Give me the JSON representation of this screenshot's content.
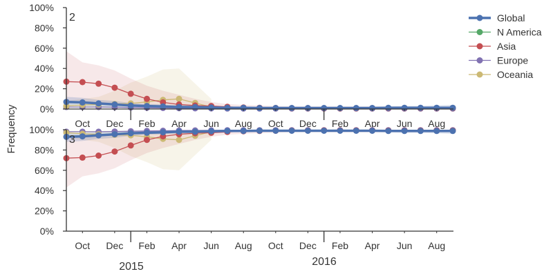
{
  "chart_data": {
    "type": "line",
    "ylabel": "Frequency",
    "x": [
      "2015-09",
      "2015-10",
      "2015-11",
      "2015-12",
      "2016-01",
      "2016-02",
      "2016-03",
      "2016-04",
      "2016-05",
      "2016-06",
      "2016-07",
      "2016-08",
      "2016-09",
      "2016-10",
      "2016-11",
      "2016-12",
      "2017-01",
      "2017-02",
      "2017-03",
      "2017-04",
      "2017-05",
      "2017-06",
      "2017-07",
      "2017-08",
      "2017-09"
    ],
    "xtick_labels": [
      "Oct",
      "Dec",
      "Feb",
      "Apr",
      "Jun",
      "Aug",
      "Oct",
      "Dec",
      "Feb",
      "Apr",
      "Jun",
      "Aug"
    ],
    "year_labels": [
      "2015",
      "2016"
    ],
    "ylim": [
      0,
      1
    ],
    "ytick_labels": [
      "0%",
      "20%",
      "40%",
      "60%",
      "80%",
      "100%"
    ],
    "legend": {
      "placement": "upper-right-outside",
      "entries": [
        "Global",
        "N America",
        "Asia",
        "Europe",
        "Oceania"
      ]
    },
    "colors": {
      "Global": "#4c72b0",
      "N America": "#55a868",
      "Asia": "#c44e52",
      "Europe": "#8172b2",
      "Oceania": "#ccb974"
    },
    "panels": [
      {
        "label": "2",
        "series": [
          {
            "name": "Global",
            "values": [
              0.07,
              0.065,
              0.055,
              0.045,
              0.035,
              0.03,
              0.025,
              0.02,
              0.02,
              0.015,
              0.012,
              0.012,
              0.01,
              0.01,
              0.01,
              0.01,
              0.01,
              0.01,
              0.01,
              0.01,
              0.012,
              0.012,
              0.012,
              0.012,
              0.012
            ],
            "lower": [
              0.03,
              0.03,
              0.025,
              0.02,
              0.015,
              0.012,
              0.01,
              0.008,
              0.005,
              0.005,
              0.004,
              0.004,
              0.003,
              0.003,
              0.003,
              0.003,
              0.003,
              0.003,
              0.003,
              0.003,
              0.003,
              0.003,
              0.003,
              0.003,
              0.003
            ],
            "upper": [
              0.12,
              0.11,
              0.09,
              0.08,
              0.06,
              0.05,
              0.045,
              0.04,
              0.035,
              0.03,
              0.025,
              0.022,
              0.02,
              0.02,
              0.02,
              0.02,
              0.02,
              0.02,
              0.02,
              0.02,
              0.025,
              0.03,
              0.03,
              0.035,
              0.04
            ]
          },
          {
            "name": "N America",
            "values": [
              null,
              null,
              null,
              null,
              null,
              null,
              null,
              null,
              null,
              null,
              null,
              null,
              null,
              null,
              null,
              null,
              null,
              null,
              null,
              null,
              null,
              null,
              null,
              null,
              null
            ]
          },
          {
            "name": "Asia",
            "values": [
              0.27,
              0.265,
              0.25,
              0.21,
              0.15,
              0.1,
              0.065,
              0.045,
              0.035,
              0.03,
              0.022,
              0.015,
              0.012,
              0.01,
              0.008,
              0.008,
              0.007,
              0.007,
              0.007,
              0.008,
              0.008,
              0.008,
              0.008,
              0.008,
              0.008
            ],
            "lower": [
              0.06,
              0.06,
              0.05,
              0.04,
              0.03,
              0.02,
              0.015,
              0.01,
              0.008,
              0.006,
              0.005,
              0.004,
              0.003,
              0.003,
              0.003,
              0.003,
              0.003,
              0.003,
              0.003,
              0.003,
              0.003,
              0.003,
              0.003,
              0.003,
              0.003
            ],
            "upper": [
              0.57,
              0.46,
              0.43,
              0.38,
              0.3,
              0.23,
              0.18,
              0.14,
              0.1,
              0.07,
              0.05,
              0.04,
              0.035,
              0.03,
              0.025,
              0.025,
              0.025,
              0.025,
              0.025,
              0.025,
              0.025,
              0.025,
              0.025,
              0.025,
              0.025
            ]
          },
          {
            "name": "Europe",
            "values": [
              0.02,
              0.02,
              0.02,
              0.018,
              0.015,
              0.012,
              0.01,
              0.008,
              0.007,
              0.006,
              0.005,
              0.005,
              0.005,
              0.005,
              0.005,
              0.005,
              0.005,
              0.005,
              0.005,
              0.005,
              0.005,
              0.005,
              0.005,
              0.005,
              0.005
            ]
          },
          {
            "name": "Oceania",
            "values": [
              0.03,
              0.04,
              0.045,
              0.05,
              0.055,
              0.07,
              0.09,
              0.1,
              0.06,
              0.02,
              null,
              null,
              null,
              null,
              null,
              null,
              null,
              null,
              null,
              null,
              null,
              null,
              null,
              null,
              null
            ],
            "lower": [
              0.01,
              0.01,
              0.01,
              0.01,
              0.01,
              0.01,
              0.01,
              0.01,
              0.01,
              0.005,
              null,
              null,
              null,
              null,
              null,
              null,
              null,
              null,
              null,
              null,
              null,
              null,
              null,
              null,
              null
            ],
            "upper": [
              0.08,
              0.1,
              0.12,
              0.18,
              0.26,
              0.32,
              0.39,
              0.4,
              0.25,
              0.1,
              null,
              null,
              null,
              null,
              null,
              null,
              null,
              null,
              null,
              null,
              null,
              null,
              null,
              null,
              null
            ]
          }
        ]
      },
      {
        "label": "3",
        "series": [
          {
            "name": "Global",
            "values": [
              0.93,
              0.935,
              0.945,
              0.955,
              0.965,
              0.97,
              0.975,
              0.98,
              0.98,
              0.985,
              0.988,
              0.988,
              0.99,
              0.99,
              0.99,
              0.99,
              0.99,
              0.99,
              0.99,
              0.99,
              0.988,
              0.988,
              0.988,
              0.988,
              0.988
            ],
            "lower": [
              0.88,
              0.89,
              0.91,
              0.92,
              0.94,
              0.95,
              0.955,
              0.96,
              0.965,
              0.97,
              0.975,
              0.978,
              0.98,
              0.98,
              0.98,
              0.98,
              0.98,
              0.98,
              0.98,
              0.98,
              0.975,
              0.97,
              0.97,
              0.965,
              0.96
            ],
            "upper": [
              0.97,
              0.97,
              0.975,
              0.98,
              0.985,
              0.988,
              0.99,
              0.992,
              0.995,
              0.995,
              0.996,
              0.996,
              0.997,
              0.997,
              0.997,
              0.997,
              0.997,
              0.997,
              0.997,
              0.997,
              0.997,
              0.997,
              0.997,
              0.997,
              0.997
            ]
          },
          {
            "name": "N America",
            "values": [
              null,
              null,
              null,
              null,
              null,
              null,
              null,
              null,
              null,
              null,
              null,
              null,
              null,
              null,
              null,
              null,
              null,
              null,
              null,
              null,
              null,
              null,
              null,
              null,
              null
            ]
          },
          {
            "name": "Asia",
            "values": [
              0.72,
              0.725,
              0.745,
              0.785,
              0.845,
              0.9,
              0.935,
              0.955,
              0.965,
              0.97,
              0.978,
              0.985,
              0.988,
              0.99,
              0.992,
              0.992,
              0.993,
              0.993,
              0.993,
              0.992,
              0.992,
              0.992,
              0.992,
              0.992,
              0.992
            ],
            "lower": [
              0.43,
              0.54,
              0.57,
              0.62,
              0.7,
              0.77,
              0.82,
              0.86,
              0.9,
              0.93,
              0.95,
              0.96,
              0.965,
              0.97,
              0.975,
              0.975,
              0.975,
              0.975,
              0.975,
              0.975,
              0.975,
              0.975,
              0.975,
              0.975,
              0.975
            ],
            "upper": [
              0.94,
              0.94,
              0.95,
              0.96,
              0.97,
              0.98,
              0.985,
              0.99,
              0.992,
              0.994,
              0.995,
              0.996,
              0.997,
              0.997,
              0.997,
              0.997,
              0.997,
              0.997,
              0.997,
              0.997,
              0.997,
              0.997,
              0.997,
              0.997,
              0.997
            ]
          },
          {
            "name": "Europe",
            "values": [
              0.98,
              0.98,
              0.98,
              0.982,
              0.985,
              0.988,
              0.99,
              0.992,
              0.993,
              0.994,
              0.995,
              0.995,
              0.995,
              0.995,
              0.995,
              0.995,
              0.995,
              0.995,
              0.995,
              0.995,
              0.995,
              0.995,
              0.995,
              0.995,
              0.995
            ]
          },
          {
            "name": "Oceania",
            "values": [
              0.97,
              0.96,
              0.955,
              0.95,
              0.945,
              0.93,
              0.91,
              0.9,
              0.94,
              0.98,
              null,
              null,
              null,
              null,
              null,
              null,
              null,
              null,
              null,
              null,
              null,
              null,
              null,
              null,
              null
            ],
            "lower": [
              0.92,
              0.9,
              0.88,
              0.82,
              0.74,
              0.68,
              0.61,
              0.6,
              0.75,
              0.9,
              null,
              null,
              null,
              null,
              null,
              null,
              null,
              null,
              null,
              null,
              null,
              null,
              null,
              null,
              null
            ],
            "upper": [
              0.99,
              0.99,
              0.99,
              0.99,
              0.99,
              0.99,
              0.99,
              0.99,
              0.99,
              0.995,
              null,
              null,
              null,
              null,
              null,
              null,
              null,
              null,
              null,
              null,
              null,
              null,
              null,
              null,
              null
            ]
          }
        ]
      }
    ]
  }
}
